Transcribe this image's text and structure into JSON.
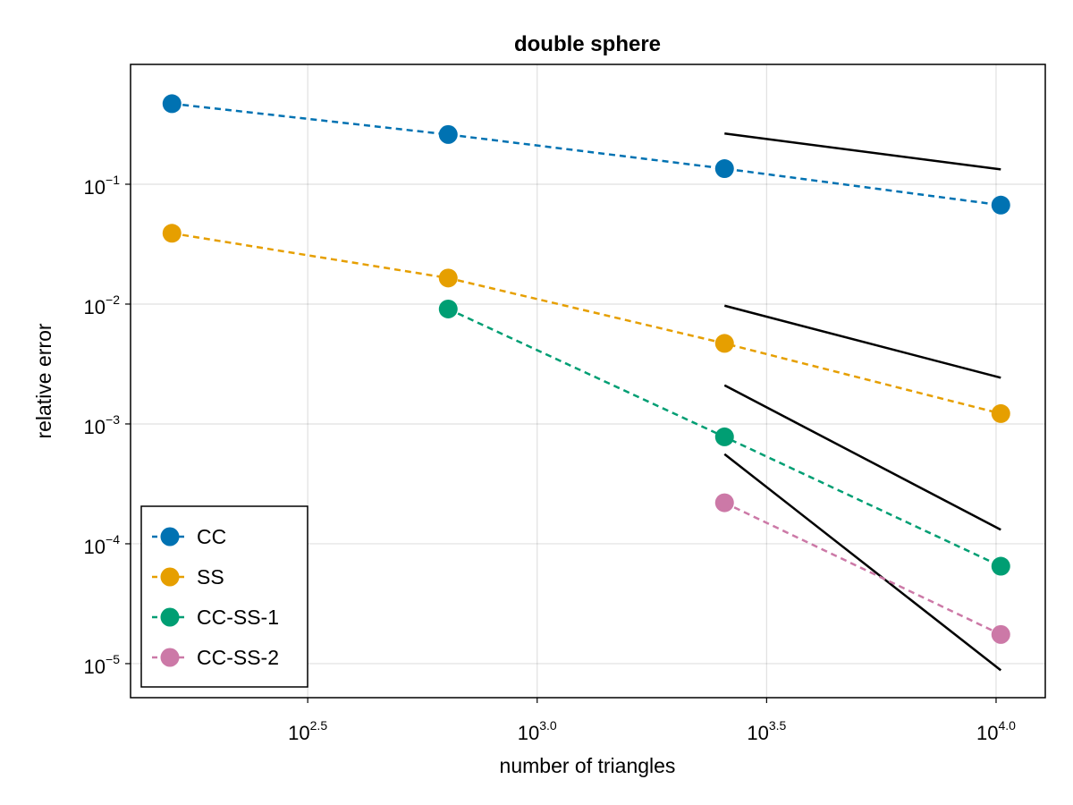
{
  "chart_data": {
    "type": "line",
    "title": "double sphere",
    "xlabel": "number of triangles",
    "ylabel": "relative error",
    "xscale": "log10",
    "yscale": "log10",
    "xlim": [
      130,
      12800
    ],
    "ylim": [
      5.2e-06,
      1.0
    ],
    "grid": true,
    "legend_position": "bottom-left",
    "x_ticks": [
      {
        "value": 316.23,
        "base": "10",
        "exp": "2.5"
      },
      {
        "value": 1000,
        "base": "10",
        "exp": "3.0"
      },
      {
        "value": 3162.3,
        "base": "10",
        "exp": "3.5"
      },
      {
        "value": 10000,
        "base": "10",
        "exp": "4.0"
      }
    ],
    "y_ticks": [
      {
        "value": 0.1,
        "base": "10",
        "exp": "−1"
      },
      {
        "value": 0.01,
        "base": "10",
        "exp": "−2"
      },
      {
        "value": 0.001,
        "base": "10",
        "exp": "−3"
      },
      {
        "value": 0.0001,
        "base": "10",
        "exp": "−4"
      },
      {
        "value": 1e-05,
        "base": "10",
        "exp": "−5"
      }
    ],
    "series": [
      {
        "name": "CC",
        "color": "#0072b2",
        "style": "dashed-marker",
        "x": [
          160,
          640,
          2560,
          10240
        ],
        "y": [
          0.47,
          0.26,
          0.135,
          0.067
        ]
      },
      {
        "name": "SS",
        "color": "#e69f00",
        "style": "dashed-marker",
        "x": [
          160,
          640,
          2560,
          10240
        ],
        "y": [
          0.039,
          0.0165,
          0.0047,
          0.00122
        ]
      },
      {
        "name": "CC-SS-1",
        "color": "#009e73",
        "style": "dashed-marker",
        "x": [
          640,
          2560,
          10240
        ],
        "y": [
          0.0091,
          0.00078,
          6.5e-05
        ]
      },
      {
        "name": "CC-SS-2",
        "color": "#cc79a7",
        "style": "dashed-marker",
        "x": [
          2560,
          10240
        ],
        "y": [
          0.00022,
          1.75e-05
        ]
      }
    ],
    "reference_lines": [
      {
        "color": "#000000",
        "x": [
          2560,
          10240
        ],
        "y": [
          0.265,
          0.133
        ]
      },
      {
        "color": "#000000",
        "x": [
          2560,
          10240
        ],
        "y": [
          0.0097,
          0.00243
        ]
      },
      {
        "color": "#000000",
        "x": [
          2560,
          10240
        ],
        "y": [
          0.0021,
          0.000131
        ]
      },
      {
        "color": "#000000",
        "x": [
          2560,
          10240
        ],
        "y": [
          0.00056,
          8.8e-06
        ]
      }
    ]
  }
}
